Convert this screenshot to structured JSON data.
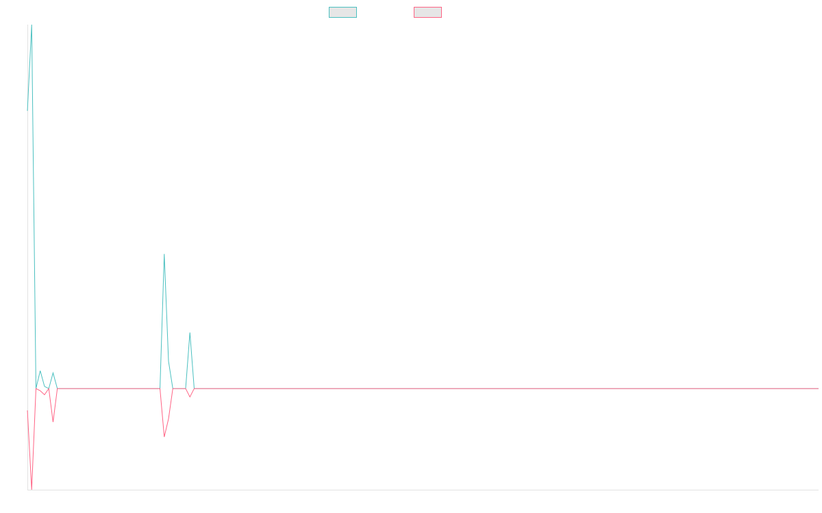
{
  "chart_data": {
    "type": "line",
    "ylim": [
      -27.8,
      100
    ],
    "series": [
      {
        "color": "#4bc0c0",
        "values": [
          76.3,
          100,
          0,
          4.9,
          0.6,
          0,
          4.3,
          0,
          0,
          0,
          0,
          0,
          0,
          0,
          0,
          0,
          0,
          0,
          0,
          0,
          0,
          0,
          0,
          0,
          0,
          0,
          0,
          0,
          0,
          0,
          0,
          0,
          37,
          7.5,
          0,
          0,
          0,
          0,
          15.4,
          0,
          0,
          0,
          0,
          0,
          0,
          0,
          0,
          0,
          0,
          0,
          0,
          0,
          0,
          0,
          0,
          0,
          0,
          0,
          0,
          0,
          0,
          0,
          0,
          0,
          0,
          0,
          0,
          0,
          0,
          0,
          0,
          0,
          0,
          0,
          0,
          0,
          0,
          0,
          0,
          0,
          0,
          0,
          0,
          0,
          0,
          0,
          0,
          0,
          0,
          0,
          0,
          0,
          0,
          0,
          0,
          0,
          0,
          0,
          0,
          0,
          0,
          0,
          0,
          0,
          0,
          0,
          0,
          0,
          0,
          0,
          0,
          0,
          0,
          0,
          0,
          0,
          0,
          0,
          0,
          0,
          0,
          0,
          0,
          0,
          0,
          0,
          0,
          0,
          0,
          0,
          0,
          0,
          0,
          0,
          0,
          0,
          0,
          0,
          0,
          0,
          0,
          0,
          0,
          0,
          0,
          0,
          0,
          0,
          0,
          0,
          0,
          0,
          0,
          0,
          0,
          0,
          0,
          0,
          0,
          0,
          0,
          0,
          0,
          0,
          0,
          0,
          0,
          0,
          0,
          0,
          0,
          0,
          0,
          0,
          0,
          0,
          0,
          0,
          0,
          0,
          0,
          0,
          0,
          0,
          0,
          0
        ]
      },
      {
        "color": "#ff6384",
        "values": [
          -6,
          -27.8,
          0,
          -0.6,
          -1.7,
          0,
          -9.2,
          0,
          0,
          0,
          0,
          0,
          0,
          0,
          0,
          0,
          0,
          0,
          0,
          0,
          0,
          0,
          0,
          0,
          0,
          0,
          0,
          0,
          0,
          0,
          0,
          0,
          -13.3,
          -8.3,
          0,
          0,
          0,
          0,
          -2.3,
          0,
          0,
          0,
          0,
          0,
          0,
          0,
          0,
          0,
          0,
          0,
          0,
          0,
          0,
          0,
          0,
          0,
          0,
          0,
          0,
          0,
          0,
          0,
          0,
          0,
          0,
          0,
          0,
          0,
          0,
          0,
          0,
          0,
          0,
          0,
          0,
          0,
          0,
          0,
          0,
          0,
          0,
          0,
          0,
          0,
          0,
          0,
          0,
          0,
          0,
          0,
          0,
          0,
          0,
          0,
          0,
          0,
          0,
          0,
          0,
          0,
          0,
          0,
          0,
          0,
          0,
          0,
          0,
          0,
          0,
          0,
          0,
          0,
          0,
          0,
          0,
          0,
          0,
          0,
          0,
          0,
          0,
          0,
          0,
          0,
          0,
          0,
          0,
          0,
          0,
          0,
          0,
          0,
          0,
          0,
          0,
          0,
          0,
          0,
          0,
          0,
          0,
          0,
          0,
          0,
          0,
          0,
          0,
          0,
          0,
          0,
          0,
          0,
          0,
          0,
          0,
          0,
          0,
          0,
          0,
          0,
          0,
          0,
          0,
          0,
          0,
          0,
          0,
          0,
          0,
          0,
          0,
          0,
          0,
          0,
          0,
          0,
          0,
          0,
          0,
          0,
          0,
          0,
          0,
          0,
          0,
          0
        ]
      }
    ]
  }
}
